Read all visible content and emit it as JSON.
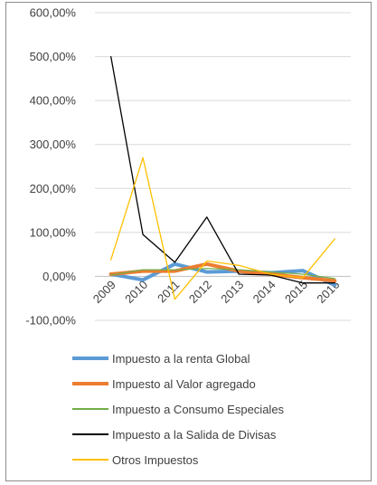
{
  "chart_data": {
    "type": "line",
    "categories": [
      "2009",
      "2010",
      "2011",
      "2012",
      "2013",
      "2014",
      "2015",
      "2016"
    ],
    "y_tick_labels": [
      "600,00%",
      "500,00%",
      "400,00%",
      "300,00%",
      "200,00%",
      "100,00%",
      "0,00%",
      "-100,00%"
    ],
    "ylim": [
      -100,
      600
    ],
    "y_ticks": [
      600,
      500,
      400,
      300,
      200,
      100,
      0,
      -100
    ],
    "grid": "horizontal",
    "legend_position": "bottom",
    "series": [
      {
        "name": "Impuesto a la renta Global",
        "color": "#5b9bd5",
        "width": 4,
        "values": [
          5,
          -8,
          28,
          10,
          12,
          8,
          13,
          -20
        ]
      },
      {
        "name": "Impuesto al Valor agregado",
        "color": "#ed7d31",
        "width": 4,
        "values": [
          5,
          12,
          12,
          28,
          12,
          5,
          -3,
          -10
        ]
      },
      {
        "name": "Impuesto a Consumo Especiales",
        "color": "#70ad47",
        "width": 1.2,
        "values": [
          3,
          15,
          15,
          18,
          15,
          10,
          5,
          -5
        ]
      },
      {
        "name": "Impuesto a la Salida de Divisas",
        "color": "#000000",
        "width": 1.3,
        "values": [
          500,
          95,
          32,
          135,
          5,
          3,
          -15,
          -15
        ]
      },
      {
        "name": "Otros Impuestos",
        "color": "#ffc000",
        "width": 1.3,
        "values": [
          38,
          270,
          -52,
          35,
          25,
          5,
          -3,
          85
        ]
      }
    ]
  }
}
